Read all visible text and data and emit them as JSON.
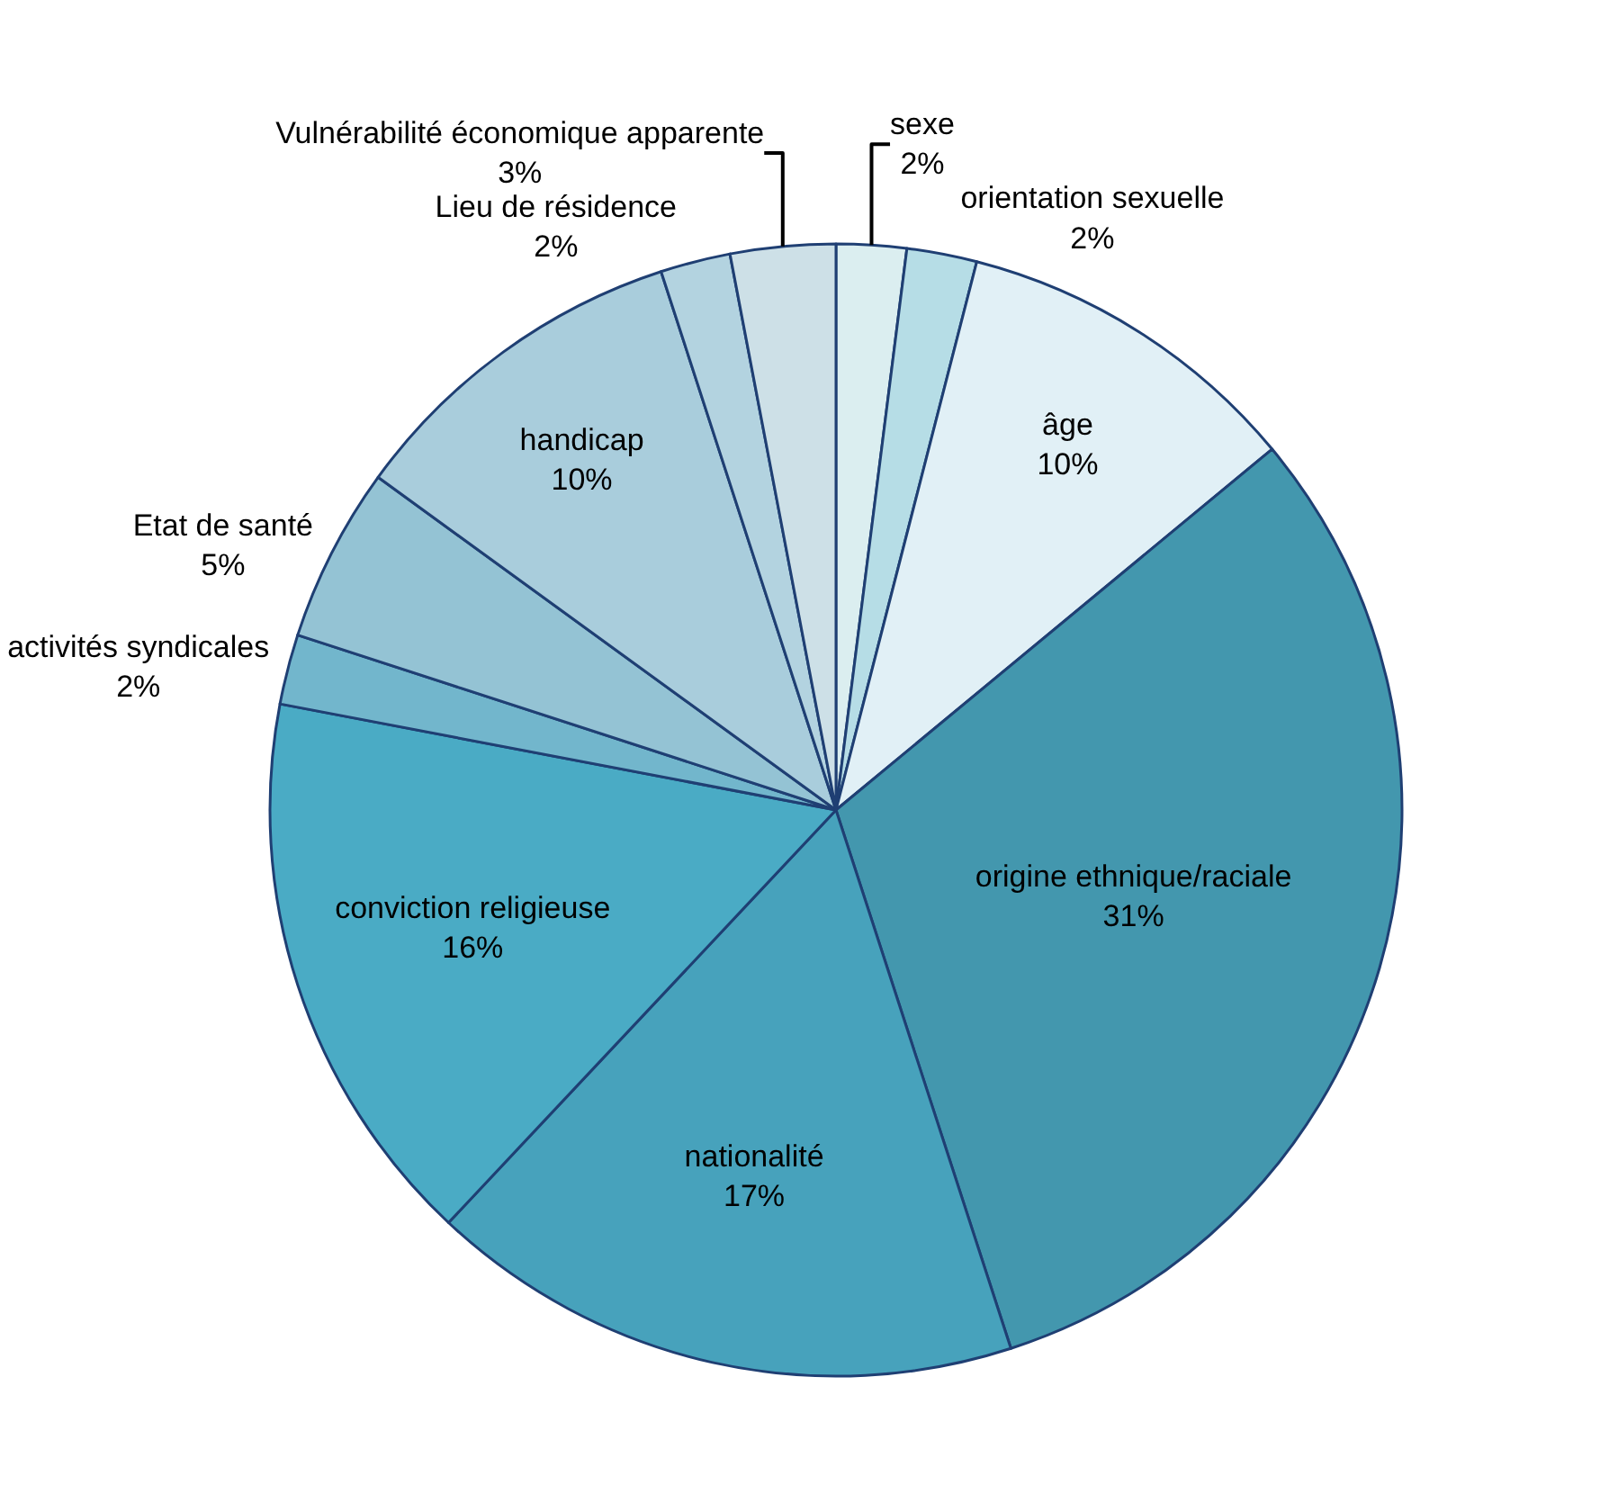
{
  "chart_data": {
    "type": "pie",
    "categories": [
      "sexe",
      "orientation sexuelle",
      "âge",
      "origine ethnique/raciale",
      "nationalité",
      "conviction religieuse",
      "activités syndicales",
      "Etat de santé",
      "handicap",
      "Lieu de résidence",
      "Vulnérabilité économique apparente"
    ],
    "values": [
      2,
      2,
      10,
      31,
      17,
      16,
      2,
      5,
      10,
      2,
      3
    ],
    "value_labels": [
      "2%",
      "2%",
      "10%",
      "31%",
      "17%",
      "16%",
      "2%",
      "5%",
      "10%",
      "2%",
      "3%"
    ],
    "colors": [
      "#dbeef0",
      "#b6dde6",
      "#e1f0f6",
      "#4397ae",
      "#47a2bc",
      "#4aabc5",
      "#72b6cc",
      "#94c3d4",
      "#a9cddc",
      "#b3d3e0",
      "#cde0e7"
    ],
    "legend": false
  }
}
